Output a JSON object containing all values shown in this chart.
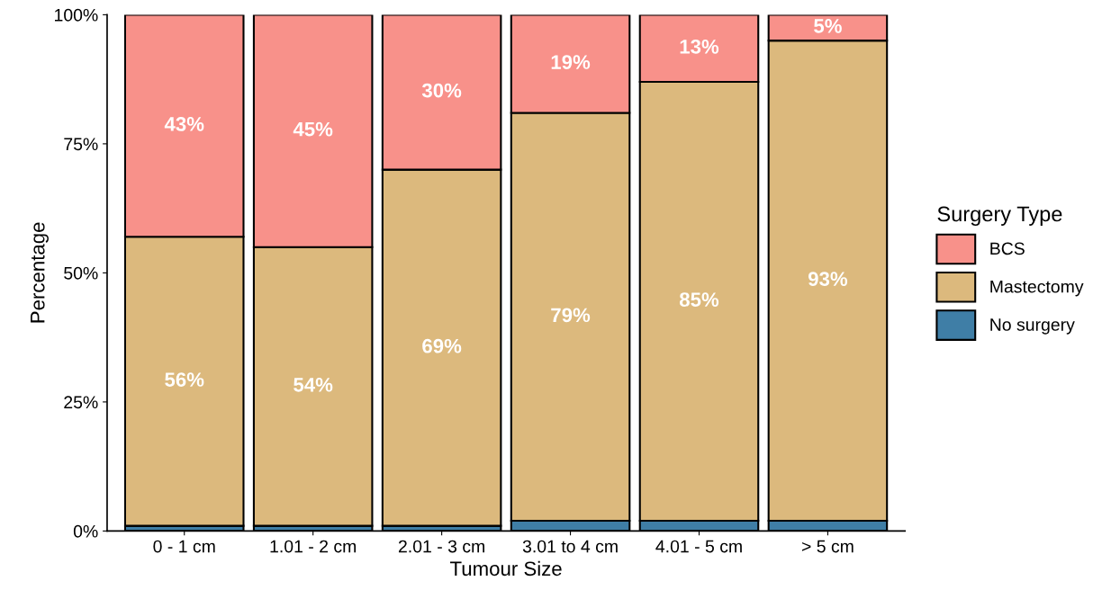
{
  "chart_data": {
    "type": "bar",
    "stacked": true,
    "xlabel": "Tumour Size",
    "ylabel": "Percentage",
    "legend_title": "Surgery Type",
    "legend": "right",
    "categories": [
      "0 - 1 cm",
      "1.01 - 2 cm",
      "2.01 - 3 cm",
      "3.01 to 4 cm",
      "4.01 - 5 cm",
      "> 5 cm"
    ],
    "series": [
      {
        "name": "No surgery",
        "color": "#3f7ea6",
        "values": [
          1,
          1,
          1,
          2,
          2,
          2
        ]
      },
      {
        "name": "Mastectomy",
        "color": "#dcb97d",
        "values": [
          56,
          54,
          69,
          79,
          85,
          93
        ],
        "value_labels": [
          "56%",
          "54%",
          "69%",
          "79%",
          "85%",
          "93%"
        ]
      },
      {
        "name": "BCS",
        "color": "#f8918a",
        "values": [
          43,
          45,
          30,
          19,
          13,
          5
        ],
        "value_labels": [
          "43%",
          "45%",
          "30%",
          "19%",
          "13%",
          "5%"
        ]
      }
    ],
    "ylim": [
      0,
      100
    ],
    "yticks": [
      {
        "value": 0,
        "label": "0%"
      },
      {
        "value": 25,
        "label": "25%"
      },
      {
        "value": 50,
        "label": "50%"
      },
      {
        "value": 75,
        "label": "75%"
      },
      {
        "value": 100,
        "label": "100%"
      }
    ],
    "grid": false
  }
}
